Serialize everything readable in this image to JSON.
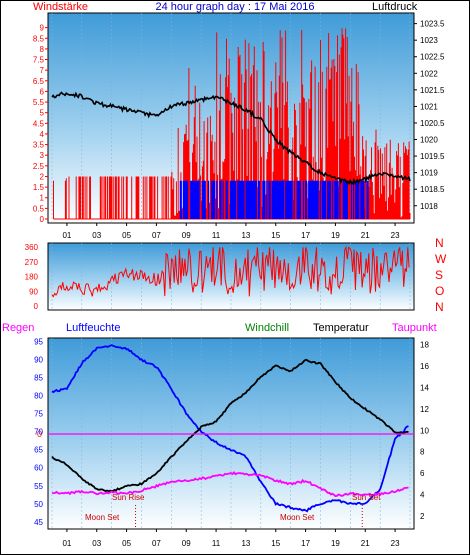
{
  "colors": {
    "wind": "#ff0000",
    "gust": "#0000ff",
    "pressure": "#000000",
    "humidity": "#0000ff",
    "temperature": "#000000",
    "windchill": "#008000",
    "dewpoint": "#ff00ff",
    "sky_top": "#4aa3dc",
    "sky_bottom": "#ffffff"
  },
  "header": {
    "left": "Windstärke",
    "center": "24 hour graph day : 17 Mai 2016",
    "right": "Luftdruck"
  },
  "hour_ticks": [
    "01",
    "03",
    "05",
    "07",
    "09",
    "11",
    "13",
    "15",
    "17",
    "19",
    "21",
    "23"
  ],
  "direction_labels": [
    "N",
    "W",
    "S",
    "O",
    "N"
  ],
  "legend": {
    "regen": "Regen",
    "luftfeuchte": "Luftfeuchte",
    "windchill": "Windchill",
    "temperatur": "Temperatur",
    "taupunkt": "Taupunkt"
  },
  "annotations": {
    "sun_rise": "Sun Rise",
    "sun_set": "Sun Set",
    "moon_set_1": "Moon Set",
    "moon_set_2": "Moon Set",
    "regen_zero": "0"
  },
  "chart_data": [
    {
      "type": "line",
      "ylim": [
        0,
        9.5
      ],
      "yticks_left": [
        "0",
        "0.5",
        "1",
        "1.5",
        "2",
        "2.5",
        "3",
        "3.5",
        "4",
        "4.5",
        "5",
        "5.5",
        "6",
        "6.5",
        "7",
        "7.5",
        "8",
        "8.5",
        "9"
      ],
      "yticks_right": [
        "1018",
        "1018.5",
        "1019",
        "1019.5",
        "1020",
        "1020.5",
        "1021",
        "1021.5",
        "1022",
        "1022.5",
        "1023",
        "1023.5"
      ],
      "pressure_range": [
        1017.6,
        1023.7
      ],
      "pressure": {
        "x": [
          0,
          1,
          2,
          3,
          4,
          5,
          6,
          7,
          8,
          9,
          10,
          11,
          12,
          13,
          14,
          15,
          16,
          17,
          18,
          19,
          20,
          21,
          22,
          23,
          24
        ],
        "y": [
          1021.3,
          1021.4,
          1021.3,
          1021.1,
          1021.0,
          1020.9,
          1020.8,
          1020.7,
          1021.0,
          1021.1,
          1021.2,
          1021.3,
          1021.1,
          1020.9,
          1020.6,
          1020.0,
          1019.6,
          1019.3,
          1019.0,
          1018.8,
          1018.7,
          1018.8,
          1019.0,
          1018.9,
          1018.8
        ]
      },
      "wind_max_hourly": [
        0,
        2,
        2,
        2,
        2,
        2,
        2,
        2,
        2,
        7.5,
        6,
        9,
        9,
        9,
        9,
        9,
        9,
        9,
        9,
        9,
        9,
        5,
        4,
        4
      ],
      "gust_band": [
        1.8,
        0
      ]
    },
    {
      "type": "line",
      "ylim": [
        0,
        360
      ],
      "yticks": [
        "0",
        "90",
        "180",
        "270",
        "360"
      ],
      "wind_direction_hourly": [
        80,
        120,
        100,
        90,
        150,
        200,
        180,
        160,
        220,
        240,
        200,
        260,
        210,
        200,
        240,
        230,
        220,
        260,
        230,
        210,
        240,
        200,
        220,
        250
      ]
    },
    {
      "type": "line",
      "yticks_left": [
        "45",
        "50",
        "55",
        "60",
        "65",
        "70",
        "75",
        "80",
        "85",
        "90",
        "95"
      ],
      "yticks_right": [
        "2",
        "4",
        "6",
        "8",
        "10",
        "12",
        "14",
        "16",
        "18"
      ],
      "humidity": {
        "x": [
          0,
          1,
          2,
          3,
          4,
          5,
          6,
          7,
          8,
          9,
          10,
          11,
          12,
          13,
          14,
          15,
          16,
          17,
          18,
          19,
          20,
          21,
          22,
          23,
          24
        ],
        "y": [
          81,
          82,
          89,
          93,
          94,
          93,
          90,
          88,
          82,
          75,
          70,
          67,
          65,
          63,
          56,
          50,
          49,
          48,
          50,
          51,
          50,
          50,
          54,
          68,
          72
        ]
      },
      "temperature": {
        "x": [
          0,
          1,
          2,
          3,
          4,
          5,
          6,
          7,
          8,
          9,
          10,
          11,
          12,
          13,
          14,
          15,
          16,
          17,
          18,
          19,
          20,
          21,
          22,
          23,
          24
        ],
        "y": [
          7.5,
          6.8,
          5.5,
          4.5,
          4.3,
          4.8,
          5.0,
          6.0,
          7.5,
          9.0,
          10.3,
          10.8,
          12.5,
          13.5,
          15.0,
          16.0,
          15.5,
          16.5,
          16.2,
          14.5,
          13.0,
          12.0,
          11.0,
          9.8,
          9.8
        ]
      },
      "dewpoint": {
        "x": [
          0,
          1,
          2,
          3,
          4,
          5,
          6,
          7,
          8,
          9,
          10,
          11,
          12,
          13,
          14,
          15,
          16,
          17,
          18,
          19,
          20,
          21,
          22,
          23,
          24
        ],
        "y": [
          4.2,
          4.1,
          4.3,
          4.1,
          4.2,
          4.1,
          4.4,
          4.8,
          5.2,
          5.3,
          5.5,
          5.7,
          6.0,
          5.9,
          5.8,
          5.3,
          5.0,
          5.3,
          4.6,
          3.9,
          4.1,
          4.0,
          4.1,
          4.3,
          4.8
        ]
      }
    }
  ]
}
